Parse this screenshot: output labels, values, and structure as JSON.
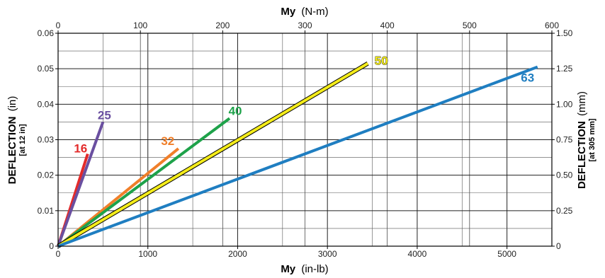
{
  "chart_data": {
    "type": "line",
    "x_bottom": {
      "title": "My",
      "unit": "(in-lb)",
      "range": [
        0,
        5500
      ],
      "ticks": [
        "0",
        "1000",
        "2000",
        "3000",
        "4000",
        "5000"
      ]
    },
    "x_top": {
      "title": "My",
      "unit": "(N-m)",
      "range": [
        0,
        600
      ],
      "ticks": [
        "0",
        "100",
        "200",
        "300",
        "400",
        "500",
        "600"
      ]
    },
    "y_left": {
      "title": "DEFLECTION",
      "unit": "(in)",
      "subtitle": "[at 12 in]",
      "range": [
        0,
        0.06
      ],
      "ticks": [
        "0",
        "0.01",
        "0.02",
        "0.03",
        "0.04",
        "0.05",
        "0.06"
      ]
    },
    "y_right": {
      "title": "DEFLECTION",
      "unit": "(mm)",
      "subtitle": "[at 305 mm]",
      "range": [
        0,
        1.5
      ],
      "ticks": [
        "0",
        "0.25",
        "0.50",
        "0.75",
        "1.00",
        "1.25",
        "1.50"
      ]
    },
    "grid": true,
    "series": [
      {
        "name": "16",
        "color": "#e32a2a",
        "x": [
          0,
          330
        ],
        "y": [
          0,
          0.026
        ]
      },
      {
        "name": "25",
        "color": "#6a4fa0",
        "x": [
          0,
          500
        ],
        "y": [
          0,
          0.035
        ]
      },
      {
        "name": "32",
        "color": "#f07f2a",
        "x": [
          0,
          1340
        ],
        "y": [
          0,
          0.0275
        ]
      },
      {
        "name": "40",
        "color": "#1ea24a",
        "x": [
          0,
          1910
        ],
        "y": [
          0,
          0.036
        ]
      },
      {
        "name": "50",
        "color": "#f4ec1a",
        "x": [
          0,
          3450
        ],
        "y": [
          0,
          0.0515
        ]
      },
      {
        "name": "63",
        "color": "#1f7ec1",
        "x": [
          0,
          5340
        ],
        "y": [
          0,
          0.0505
        ]
      }
    ]
  }
}
